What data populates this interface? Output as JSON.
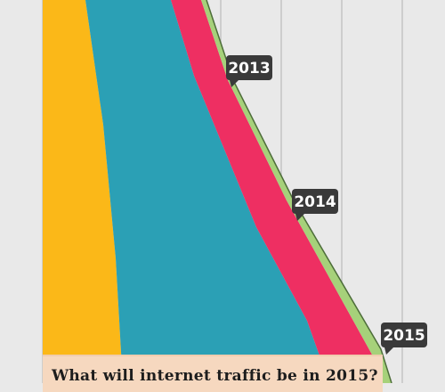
{
  "chart_data": {
    "type": "area",
    "orientation": "vertical-flow",
    "years": [
      "2013",
      "2014",
      "2015"
    ],
    "series": [
      {
        "color": "#fbb818"
      },
      {
        "color": "#2ba0b5"
      },
      {
        "color": "#ee2f62"
      },
      {
        "color": "#a6d17a"
      }
    ],
    "grid": true
  },
  "banner": {
    "question": "What will internet traffic be in 2015?"
  }
}
